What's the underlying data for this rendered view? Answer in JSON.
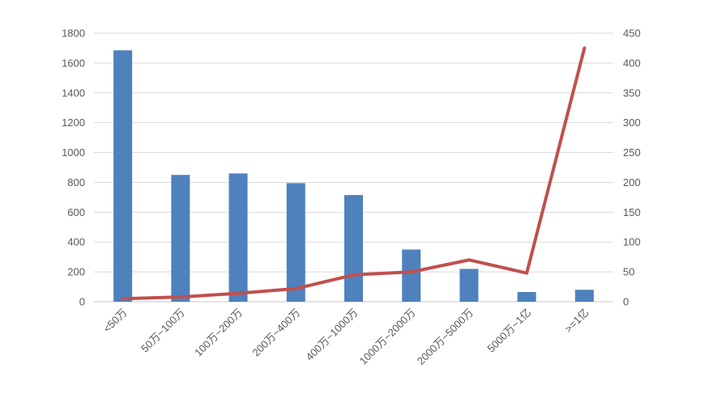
{
  "chart_data": {
    "type": "combo",
    "title": "",
    "legend": "none",
    "grid": true,
    "background": "#FFFFFF",
    "categories": [
      "<50万",
      "50万~100万",
      "100万~200万",
      "200万~400万",
      "400万~1000万",
      "1000万~2000万",
      "2000万~5000万",
      "5000万~1亿",
      ">=1亿"
    ],
    "series": [
      {
        "type": "bar",
        "axis": "left",
        "color": "#4F81BD",
        "values": [
          1685,
          850,
          860,
          795,
          715,
          350,
          220,
          65,
          80
        ]
      },
      {
        "type": "line",
        "axis": "right",
        "color": "#C0504D",
        "values": [
          5,
          8,
          14,
          22,
          45,
          50,
          70,
          48,
          425
        ]
      }
    ],
    "left_axis": {
      "min": 0,
      "max": 1800,
      "step": 200,
      "ticks": [
        "1800",
        "1600",
        "1400",
        "1200",
        "1000",
        "800",
        "600",
        "400",
        "200",
        "0"
      ]
    },
    "right_axis": {
      "min": 0,
      "max": 450,
      "step": 50,
      "ticks": [
        "450",
        "400",
        "350",
        "300",
        "250",
        "200",
        "150",
        "100",
        "50",
        "0"
      ]
    },
    "styles": {
      "axis_label_color": "#595959",
      "gridline_color": "#D9D9D9",
      "axis_line_color": "#C9C9C9"
    }
  }
}
